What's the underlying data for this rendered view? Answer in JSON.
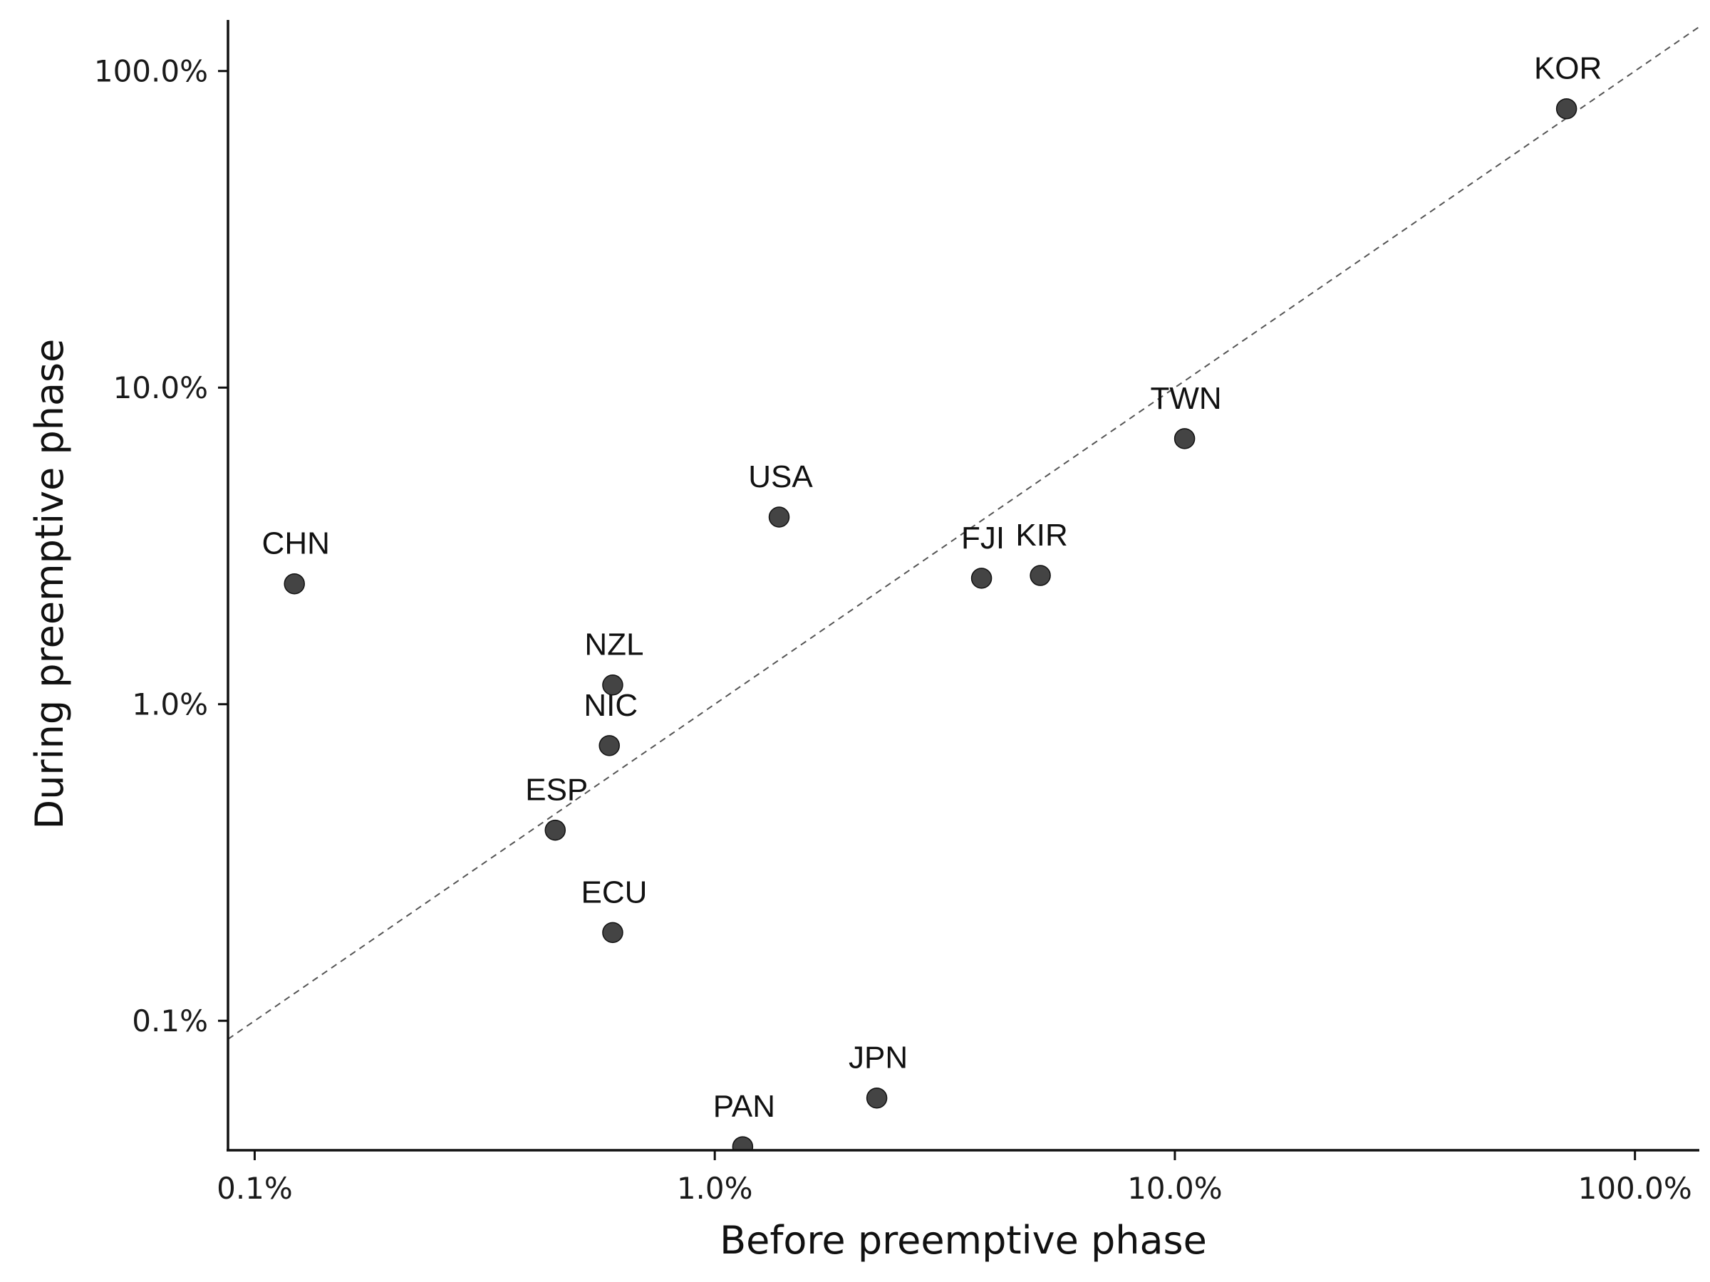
{
  "chart_data": {
    "type": "scatter",
    "xlabel": "Before preemptive phase",
    "ylabel": "During preemptive phase",
    "x_scale": "log",
    "y_scale": "log",
    "xlim": [
      0.0875,
      138
    ],
    "ylim": [
      0.039,
      145
    ],
    "x_ticks": [
      {
        "value": 0.1,
        "label": "0.1%"
      },
      {
        "value": 1,
        "label": "1.0%"
      },
      {
        "value": 10,
        "label": "10.0%"
      },
      {
        "value": 100,
        "label": "100.0%"
      }
    ],
    "y_ticks": [
      {
        "value": 0.1,
        "label": "0.1%"
      },
      {
        "value": 1,
        "label": "1.0%"
      },
      {
        "value": 10,
        "label": "10.0%"
      },
      {
        "value": 100,
        "label": "100.0%"
      }
    ],
    "reference_line": {
      "style": "dashed",
      "slope": 1
    },
    "grid": false,
    "points": [
      {
        "label": "KOR",
        "x": 71.0,
        "y": 76.0
      },
      {
        "label": "TWN",
        "x": 10.5,
        "y": 6.9
      },
      {
        "label": "USA",
        "x": 1.38,
        "y": 3.9
      },
      {
        "label": "CHN",
        "x": 0.122,
        "y": 2.4
      },
      {
        "label": "FJI",
        "x": 3.8,
        "y": 2.5
      },
      {
        "label": "KIR",
        "x": 5.1,
        "y": 2.55
      },
      {
        "label": "NZL",
        "x": 0.6,
        "y": 1.15
      },
      {
        "label": "NIC",
        "x": 0.59,
        "y": 0.74
      },
      {
        "label": "ESP",
        "x": 0.45,
        "y": 0.4
      },
      {
        "label": "ECU",
        "x": 0.6,
        "y": 0.19
      },
      {
        "label": "JPN",
        "x": 2.25,
        "y": 0.057
      },
      {
        "label": "PAN",
        "x": 1.15,
        "y": 0.04
      }
    ],
    "colors": {
      "point_fill": "#444444",
      "point_stroke": "#111111",
      "axis": "#111111",
      "reference_line": "#555555"
    }
  }
}
